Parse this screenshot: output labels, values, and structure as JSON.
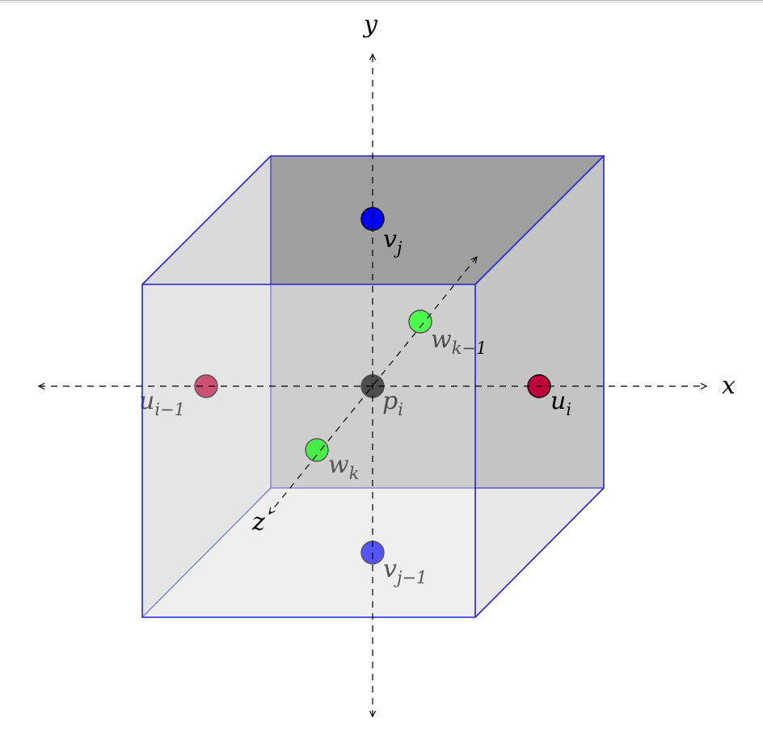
{
  "axes": {
    "x": {
      "label": "x"
    },
    "y": {
      "label": "y"
    },
    "z": {
      "label": "z"
    }
  },
  "points": {
    "p": {
      "base": "p",
      "sub": "i",
      "color": "#000000"
    },
    "u_right": {
      "base": "u",
      "sub": "i",
      "color": "#c0003a"
    },
    "u_left": {
      "base": "u",
      "sub": "i−1",
      "color": "#c0003a"
    },
    "v_top": {
      "base": "v",
      "sub": "j",
      "color": "#0000ff"
    },
    "v_bottom": {
      "base": "v",
      "sub": "j−1",
      "color": "#0000ff"
    },
    "w_back": {
      "base": "w",
      "sub": "k−1",
      "color": "#00ff00"
    },
    "w_front": {
      "base": "w",
      "sub": "k",
      "color": "#00ff00"
    }
  },
  "colors": {
    "cube_edge": "#2222dd",
    "axis": "#000000"
  }
}
